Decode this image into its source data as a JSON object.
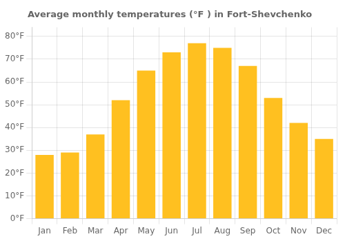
{
  "chart_data": {
    "type": "bar",
    "title": "Average monthly temperatures (°F ) in Fort-Shevchenko",
    "categories": [
      "Jan",
      "Feb",
      "Mar",
      "Apr",
      "May",
      "Jun",
      "Jul",
      "Aug",
      "Sep",
      "Oct",
      "Nov",
      "Dec"
    ],
    "values": [
      28,
      29,
      37,
      52,
      65,
      73,
      77,
      75,
      67,
      53,
      42,
      35
    ],
    "color": "#FFC020",
    "ylim": [
      0,
      84
    ],
    "yticks": [
      {
        "value": 0,
        "label": "0°F"
      },
      {
        "value": 10,
        "label": "10°F"
      },
      {
        "value": 20,
        "label": "20°F"
      },
      {
        "value": 30,
        "label": "30°F"
      },
      {
        "value": 40,
        "label": "40°F"
      },
      {
        "value": 50,
        "label": "50°F"
      },
      {
        "value": 60,
        "label": "60°F"
      },
      {
        "value": 70,
        "label": "70°F"
      },
      {
        "value": 80,
        "label": "80°F"
      }
    ],
    "grid": true
  }
}
